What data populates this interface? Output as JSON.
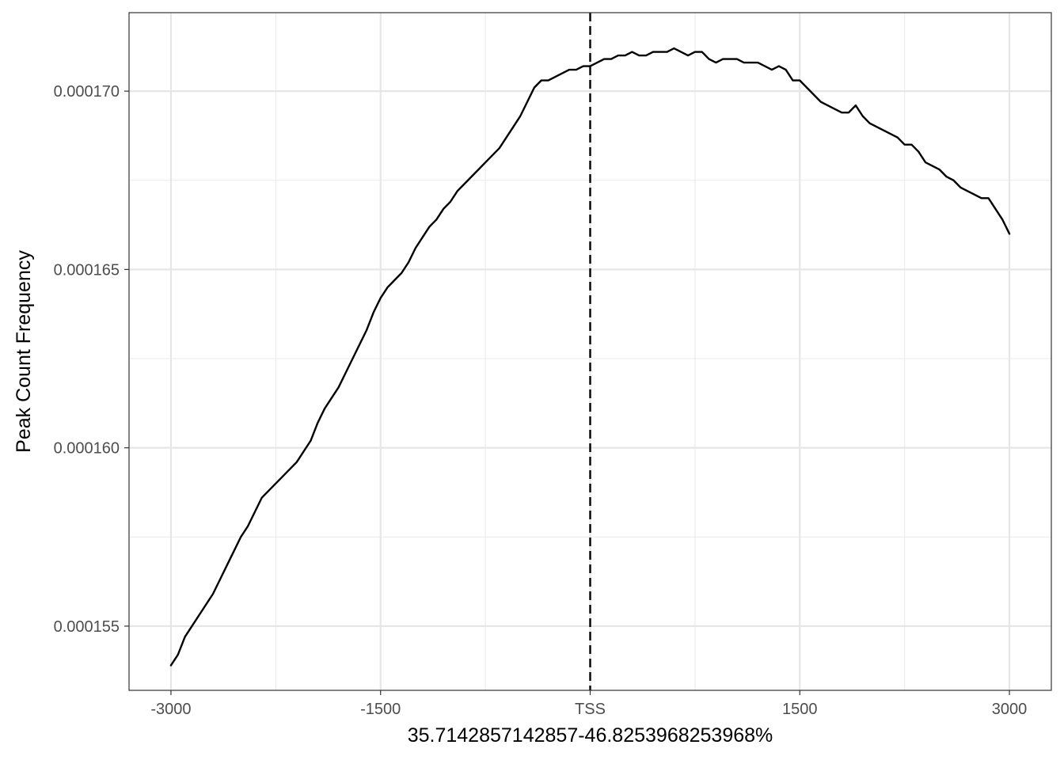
{
  "chart_data": {
    "type": "line",
    "title": "",
    "xlabel": "35.7142857142857-46.8253968253968%",
    "ylabel": "Peak Count Frequency",
    "xlim": [
      -3300,
      3300
    ],
    "ylim": [
      0.0001532,
      0.0001722
    ],
    "x_ticks": [
      {
        "value": -3000,
        "label": "-3000"
      },
      {
        "value": -1500,
        "label": "-1500"
      },
      {
        "value": 0,
        "label": "TSS"
      },
      {
        "value": 1500,
        "label": "1500"
      },
      {
        "value": 3000,
        "label": "3000"
      }
    ],
    "x_minor_ticks": [
      -2250,
      -750,
      750,
      2250
    ],
    "y_ticks": [
      {
        "value": 0.000155,
        "label": "0.000155"
      },
      {
        "value": 0.00016,
        "label": "0.000160"
      },
      {
        "value": 0.000165,
        "label": "0.000165"
      },
      {
        "value": 0.00017,
        "label": "0.000170"
      }
    ],
    "y_minor_ticks": [
      0.0001575,
      0.0001625,
      0.0001675
    ],
    "grid": true,
    "reference_line": {
      "x": 0,
      "style": "dashed",
      "color": "#000000"
    },
    "series": [
      {
        "color": "#000000",
        "x": [
          -3000,
          -2950,
          -2900,
          -2850,
          -2800,
          -2750,
          -2700,
          -2650,
          -2600,
          -2550,
          -2500,
          -2450,
          -2400,
          -2350,
          -2300,
          -2250,
          -2200,
          -2150,
          -2100,
          -2050,
          -2000,
          -1950,
          -1900,
          -1850,
          -1800,
          -1750,
          -1700,
          -1650,
          -1600,
          -1550,
          -1500,
          -1450,
          -1400,
          -1350,
          -1300,
          -1250,
          -1200,
          -1150,
          -1100,
          -1050,
          -1000,
          -950,
          -900,
          -850,
          -800,
          -750,
          -700,
          -650,
          -600,
          -550,
          -500,
          -450,
          -400,
          -350,
          -300,
          -250,
          -200,
          -150,
          -100,
          -50,
          0,
          50,
          100,
          150,
          200,
          250,
          300,
          350,
          400,
          450,
          500,
          550,
          600,
          650,
          700,
          750,
          800,
          850,
          900,
          950,
          1000,
          1050,
          1100,
          1150,
          1200,
          1250,
          1300,
          1350,
          1400,
          1450,
          1500,
          1550,
          1600,
          1650,
          1700,
          1750,
          1800,
          1850,
          1900,
          1950,
          2000,
          2050,
          2100,
          2150,
          2200,
          2250,
          2300,
          2350,
          2400,
          2450,
          2500,
          2550,
          2600,
          2650,
          2700,
          2750,
          2800,
          2850,
          2900,
          2950,
          3000
        ],
        "y": [
          0.0001539,
          0.0001542,
          0.0001547,
          0.000155,
          0.0001553,
          0.0001556,
          0.0001559,
          0.0001563,
          0.0001567,
          0.0001571,
          0.0001575,
          0.0001578,
          0.0001582,
          0.0001586,
          0.0001588,
          0.000159,
          0.0001592,
          0.0001594,
          0.0001596,
          0.0001599,
          0.0001602,
          0.0001607,
          0.0001611,
          0.0001614,
          0.0001617,
          0.0001621,
          0.0001625,
          0.0001629,
          0.0001633,
          0.0001638,
          0.0001642,
          0.0001645,
          0.0001647,
          0.0001649,
          0.0001652,
          0.0001656,
          0.0001659,
          0.0001662,
          0.0001664,
          0.0001667,
          0.0001669,
          0.0001672,
          0.0001674,
          0.0001676,
          0.0001678,
          0.000168,
          0.0001682,
          0.0001684,
          0.0001687,
          0.000169,
          0.0001693,
          0.0001697,
          0.0001701,
          0.0001703,
          0.0001703,
          0.0001704,
          0.0001705,
          0.0001706,
          0.0001706,
          0.0001707,
          0.0001707,
          0.0001708,
          0.0001709,
          0.0001709,
          0.000171,
          0.000171,
          0.0001711,
          0.000171,
          0.000171,
          0.0001711,
          0.0001711,
          0.0001711,
          0.0001712,
          0.0001711,
          0.000171,
          0.0001711,
          0.0001711,
          0.0001709,
          0.0001708,
          0.0001709,
          0.0001709,
          0.0001709,
          0.0001708,
          0.0001708,
          0.0001708,
          0.0001707,
          0.0001706,
          0.0001707,
          0.0001706,
          0.0001703,
          0.0001703,
          0.0001701,
          0.0001699,
          0.0001697,
          0.0001696,
          0.0001695,
          0.0001694,
          0.0001694,
          0.0001696,
          0.0001693,
          0.0001691,
          0.000169,
          0.0001689,
          0.0001688,
          0.0001687,
          0.0001685,
          0.0001685,
          0.0001683,
          0.000168,
          0.0001679,
          0.0001678,
          0.0001676,
          0.0001675,
          0.0001673,
          0.0001672,
          0.0001671,
          0.000167,
          0.000167,
          0.0001667,
          0.0001664,
          0.000166
        ]
      }
    ]
  }
}
